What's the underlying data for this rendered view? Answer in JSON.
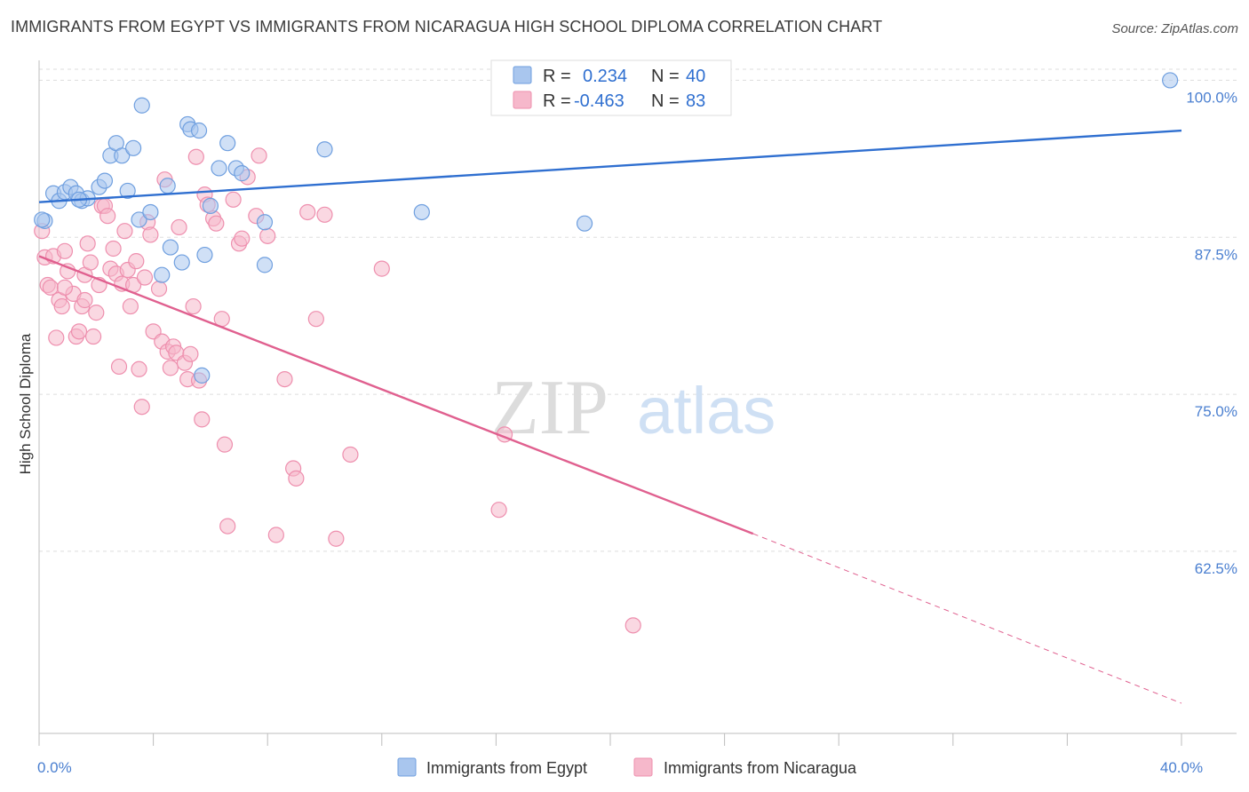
{
  "title": "IMMIGRANTS FROM EGYPT VS IMMIGRANTS FROM NICARAGUA HIGH SCHOOL DIPLOMA CORRELATION CHART",
  "source": "Source: ZipAtlas.com",
  "watermark": {
    "zip": "ZIP",
    "atlas": "atlas"
  },
  "colors": {
    "egypt_fill": "#a9c6ee",
    "egypt_stroke": "#6f9fdf",
    "egypt_line": "#2f6fd0",
    "nicaragua_fill": "#f6b8cb",
    "nicaragua_stroke": "#ee8fae",
    "nicaragua_line": "#e0608f",
    "tick_label": "#4a7fd0",
    "grid": "#dddddd"
  },
  "stats": {
    "r_label": "R =",
    "n_label": "N =",
    "rows": [
      {
        "r": "0.234",
        "n": "40"
      },
      {
        "r": "-0.463",
        "n": "83"
      }
    ]
  },
  "chart_data": {
    "type": "scatter",
    "title": "IMMIGRANTS FROM EGYPT VS IMMIGRANTS FROM NICARAGUA HIGH SCHOOL DIPLOMA CORRELATION CHART",
    "xlabel": "",
    "ylabel": "High School Diploma",
    "xlim": [
      0,
      40
    ],
    "ylim": [
      48,
      103
    ],
    "x_ticks": [
      {
        "value": 0,
        "label": "0.0%"
      },
      {
        "value": 40,
        "label": "40.0%"
      }
    ],
    "y_ticks": [
      {
        "value": 100,
        "label": "100.0%"
      },
      {
        "value": 87.5,
        "label": "87.5%"
      },
      {
        "value": 75,
        "label": "75.0%"
      },
      {
        "value": 62.5,
        "label": "62.5%"
      }
    ],
    "grid": "horizontal dashed",
    "legend_position": "bottom",
    "series": [
      {
        "name": "Immigrants from Egypt",
        "points": [
          [
            0.2,
            88.8
          ],
          [
            0.5,
            91.0
          ],
          [
            0.7,
            90.4
          ],
          [
            0.9,
            91.1
          ],
          [
            1.1,
            91.5
          ],
          [
            1.3,
            91.0
          ],
          [
            1.5,
            90.4
          ],
          [
            1.7,
            90.6
          ],
          [
            2.1,
            91.5
          ],
          [
            2.3,
            92.0
          ],
          [
            2.5,
            94.0
          ],
          [
            2.7,
            95.0
          ],
          [
            2.9,
            94.0
          ],
          [
            3.1,
            91.2
          ],
          [
            3.3,
            94.6
          ],
          [
            3.5,
            88.9
          ],
          [
            3.6,
            98.0
          ],
          [
            3.9,
            89.5
          ],
          [
            4.3,
            84.5
          ],
          [
            4.5,
            91.6
          ],
          [
            4.6,
            86.7
          ],
          [
            5.0,
            85.5
          ],
          [
            5.2,
            96.5
          ],
          [
            5.3,
            96.1
          ],
          [
            5.6,
            96.0
          ],
          [
            5.7,
            76.5
          ],
          [
            5.8,
            86.1
          ],
          [
            6.0,
            90.0
          ],
          [
            6.3,
            93.0
          ],
          [
            6.6,
            95.0
          ],
          [
            6.9,
            93.0
          ],
          [
            7.1,
            92.6
          ],
          [
            7.9,
            85.3
          ],
          [
            7.9,
            88.7
          ],
          [
            10.0,
            94.5
          ],
          [
            13.4,
            89.5
          ],
          [
            19.1,
            88.6
          ],
          [
            39.6,
            100.0
          ],
          [
            0.1,
            88.9
          ],
          [
            1.4,
            90.5
          ]
        ]
      },
      {
        "name": "Immigrants from Nicaragua",
        "points": [
          [
            0.1,
            88.0
          ],
          [
            0.2,
            85.9
          ],
          [
            0.3,
            83.7
          ],
          [
            0.4,
            83.5
          ],
          [
            0.5,
            86.0
          ],
          [
            0.6,
            79.5
          ],
          [
            0.7,
            82.5
          ],
          [
            0.8,
            82.0
          ],
          [
            0.9,
            86.4
          ],
          [
            1.0,
            84.8
          ],
          [
            1.2,
            83.0
          ],
          [
            1.3,
            79.6
          ],
          [
            1.4,
            80.0
          ],
          [
            1.5,
            82.0
          ],
          [
            1.6,
            84.5
          ],
          [
            1.6,
            82.5
          ],
          [
            1.7,
            87.0
          ],
          [
            1.8,
            85.5
          ],
          [
            1.9,
            79.6
          ],
          [
            2.0,
            81.5
          ],
          [
            2.1,
            83.7
          ],
          [
            2.2,
            90.0
          ],
          [
            2.3,
            90.0
          ],
          [
            2.4,
            89.2
          ],
          [
            2.5,
            85.0
          ],
          [
            2.6,
            86.6
          ],
          [
            2.7,
            84.6
          ],
          [
            2.8,
            77.2
          ],
          [
            2.9,
            83.8
          ],
          [
            3.0,
            88.0
          ],
          [
            3.1,
            84.9
          ],
          [
            3.2,
            82.0
          ],
          [
            3.3,
            83.7
          ],
          [
            3.4,
            85.6
          ],
          [
            3.5,
            77.0
          ],
          [
            3.6,
            74.0
          ],
          [
            3.7,
            84.3
          ],
          [
            3.8,
            88.7
          ],
          [
            3.9,
            87.7
          ],
          [
            4.0,
            80.0
          ],
          [
            4.2,
            83.4
          ],
          [
            4.3,
            79.2
          ],
          [
            4.4,
            92.1
          ],
          [
            4.5,
            78.4
          ],
          [
            4.6,
            77.1
          ],
          [
            4.7,
            78.8
          ],
          [
            4.8,
            78.3
          ],
          [
            4.9,
            88.3
          ],
          [
            5.1,
            77.5
          ],
          [
            5.2,
            76.2
          ],
          [
            5.3,
            78.2
          ],
          [
            5.4,
            82.0
          ],
          [
            5.5,
            93.9
          ],
          [
            5.6,
            76.1
          ],
          [
            5.7,
            73.0
          ],
          [
            5.8,
            90.9
          ],
          [
            5.9,
            90.1
          ],
          [
            6.1,
            89.0
          ],
          [
            6.2,
            88.6
          ],
          [
            6.4,
            81.0
          ],
          [
            6.5,
            71.0
          ],
          [
            6.6,
            64.5
          ],
          [
            6.8,
            90.5
          ],
          [
            7.0,
            87.0
          ],
          [
            7.1,
            87.4
          ],
          [
            7.3,
            92.3
          ],
          [
            7.6,
            89.2
          ],
          [
            7.7,
            94.0
          ],
          [
            8.0,
            87.6
          ],
          [
            8.3,
            63.8
          ],
          [
            8.6,
            76.2
          ],
          [
            8.9,
            69.1
          ],
          [
            9.0,
            68.3
          ],
          [
            9.4,
            89.5
          ],
          [
            9.7,
            81.0
          ],
          [
            10.0,
            89.3
          ],
          [
            10.4,
            63.5
          ],
          [
            10.9,
            70.2
          ],
          [
            12.0,
            85.0
          ],
          [
            16.1,
            65.8
          ],
          [
            16.3,
            71.8
          ],
          [
            20.8,
            56.6
          ],
          [
            0.9,
            83.5
          ]
        ]
      }
    ],
    "trend_lines": [
      {
        "series": "Immigrants from Egypt",
        "x": [
          0,
          40
        ],
        "y": [
          90.3,
          96.0
        ],
        "style": "solid"
      },
      {
        "series": "Immigrants from Nicaragua",
        "x": [
          0,
          25
        ],
        "y": [
          86.0,
          63.9
        ],
        "style": "solid"
      },
      {
        "series": "Immigrants from Nicaragua",
        "x": [
          25,
          40
        ],
        "y": [
          63.9,
          50.4
        ],
        "style": "dashed"
      }
    ]
  }
}
